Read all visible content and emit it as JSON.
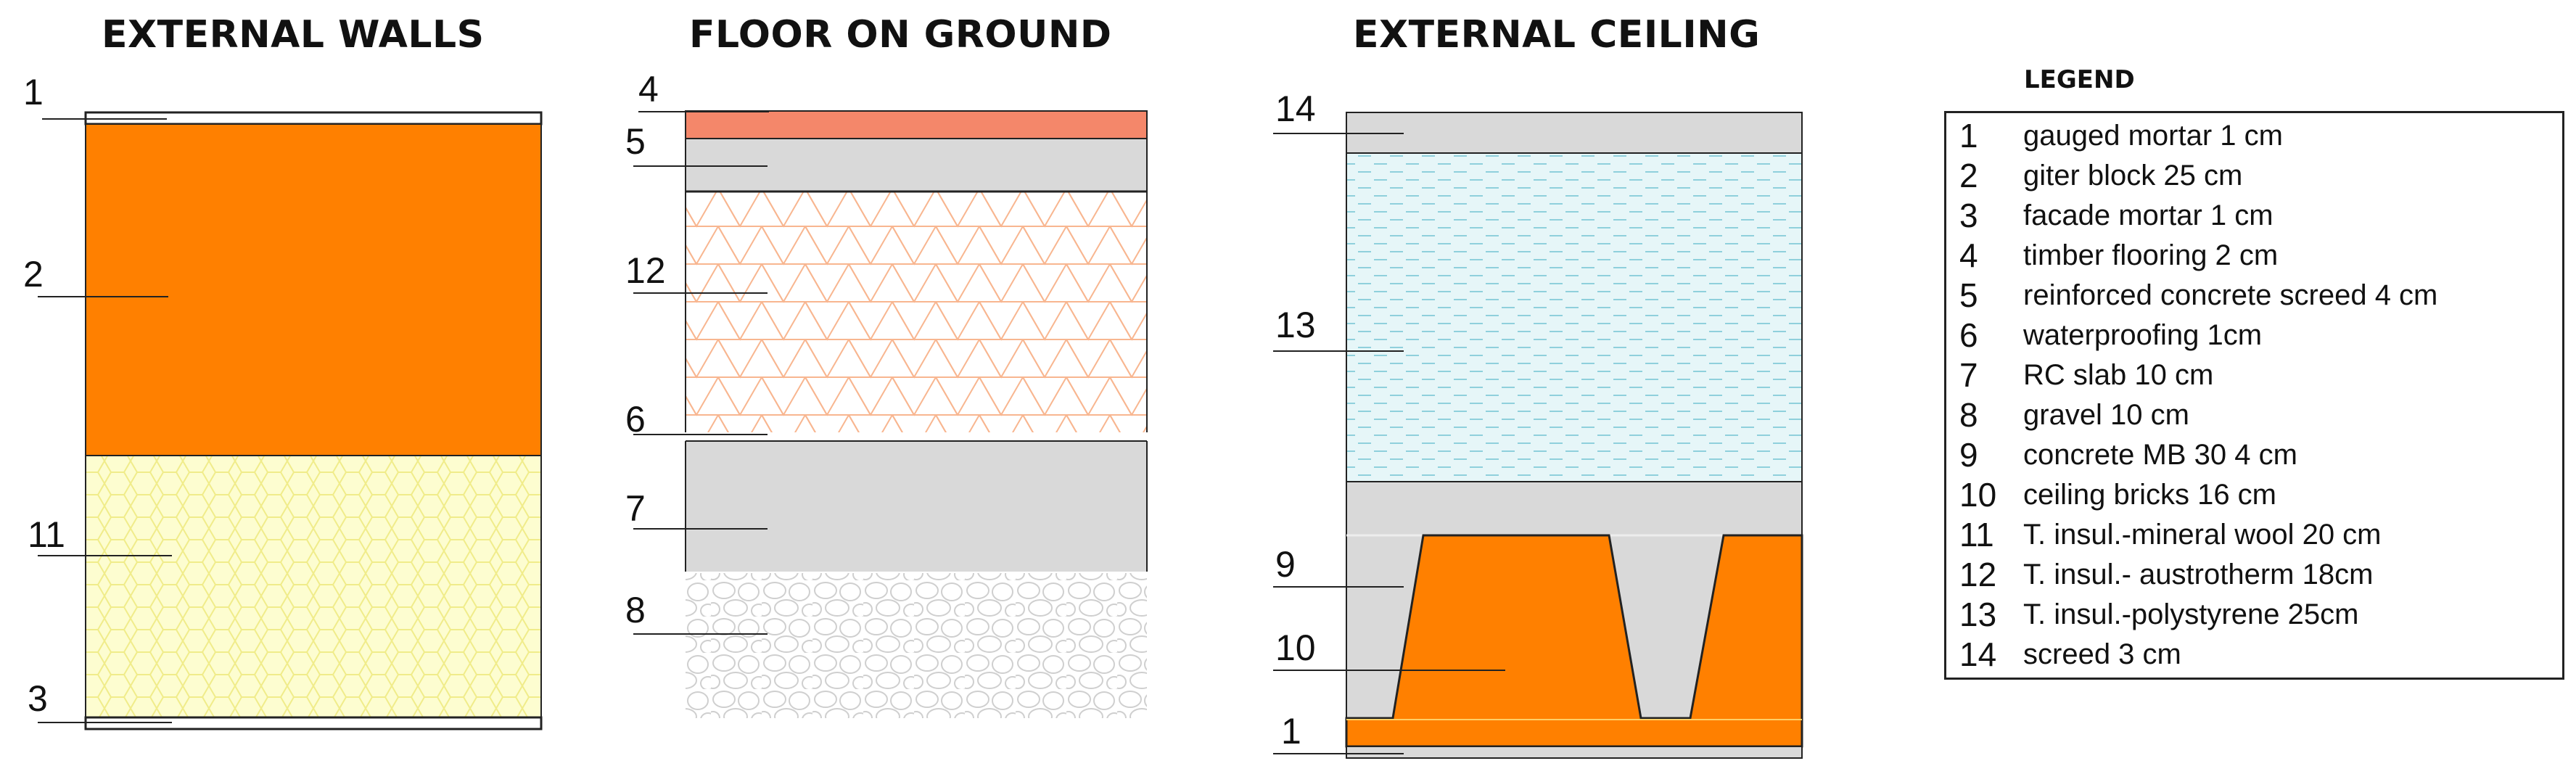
{
  "sections": {
    "external_walls": "EXTERNAL WALLS",
    "floor_on_ground": "FLOOR ON GROUND",
    "external_ceiling": "EXTERNAL CEILING"
  },
  "layer_labels": {
    "walls": [
      "1",
      "2",
      "11",
      "3"
    ],
    "floor": [
      "4",
      "5",
      "12",
      "6",
      "7",
      "8"
    ],
    "ceiling": [
      "14",
      "13",
      "9",
      "10",
      "1"
    ]
  },
  "legend": {
    "title": "LEGEND",
    "items": [
      {
        "num": "1",
        "text": "gauged mortar 1 cm"
      },
      {
        "num": "2",
        "text": "giter block 25 cm"
      },
      {
        "num": "3",
        "text": "facade mortar 1 cm"
      },
      {
        "num": "4",
        "text": "timber flooring 2 cm"
      },
      {
        "num": "5",
        "text": "reinforced concrete screed 4 cm"
      },
      {
        "num": "6",
        "text": "waterproofing 1cm"
      },
      {
        "num": "7",
        "text": "RC slab 10 cm"
      },
      {
        "num": "8",
        "text": "gravel 10 cm"
      },
      {
        "num": "9",
        "text": "concrete MB 30  4 cm"
      },
      {
        "num": "10",
        "text": "ceiling bricks 16 cm"
      },
      {
        "num": "11",
        "text": "T. insul.-mineral wool 20 cm"
      },
      {
        "num": "12",
        "text": "T. insul.- austrotherm 18cm"
      },
      {
        "num": "13",
        "text": "T. insul.-polystyrene 25cm"
      },
      {
        "num": "14",
        "text": "screed 3 cm"
      }
    ]
  },
  "colors": {
    "brick_orange": "#ff8000",
    "timber": "#f4876a",
    "concrete_grey": "#d9d9d9",
    "mineral_wool": "#fdfdd0",
    "austrotherm_lines": "#f7b58c",
    "polystyrene": "#e6f6f8",
    "outline": "#222222"
  }
}
